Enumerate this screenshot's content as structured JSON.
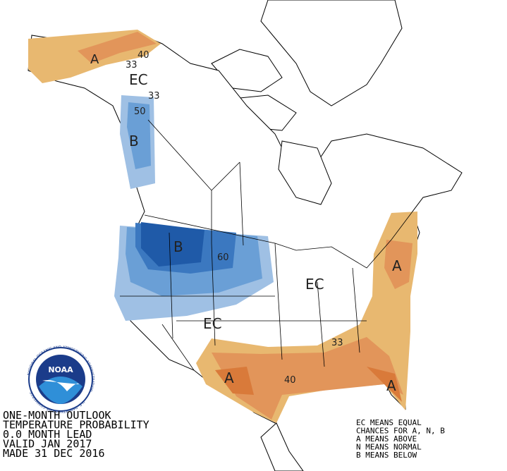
{
  "title_block": {
    "lines": [
      "ONE-MONTH OUTLOOK",
      "TEMPERATURE PROBABILITY",
      "0.0 MONTH LEAD",
      "VALID JAN 2017",
      "MADE 31 DEC 2016"
    ]
  },
  "legend": {
    "lines": [
      "EC MEANS EQUAL",
      "CHANCES FOR A, N, B",
      "A MEANS ABOVE",
      "N MEANS NORMAL",
      "B MEANS BELOW"
    ]
  },
  "map_labels": {
    "alaska_a": "A",
    "alaska_40": "40",
    "alaska_33": "33",
    "alaska_ec": "EC",
    "panhandle_33": "33",
    "panhandle_50": "50",
    "panhandle_b": "B",
    "nw_b": "B",
    "nw_60": "60",
    "central_ec": "EC",
    "west_ec": "EC",
    "se_33": "33",
    "gulf_40": "40",
    "sw_a": "A",
    "east_a": "A",
    "florida_a": "A"
  },
  "logo": {
    "name": "NOAA",
    "ring": "NATIONAL OCEANIC AND ATMOSPHERIC ADMINISTRATION",
    "dept": "U.S. DEPARTMENT OF COMMERCE"
  }
}
